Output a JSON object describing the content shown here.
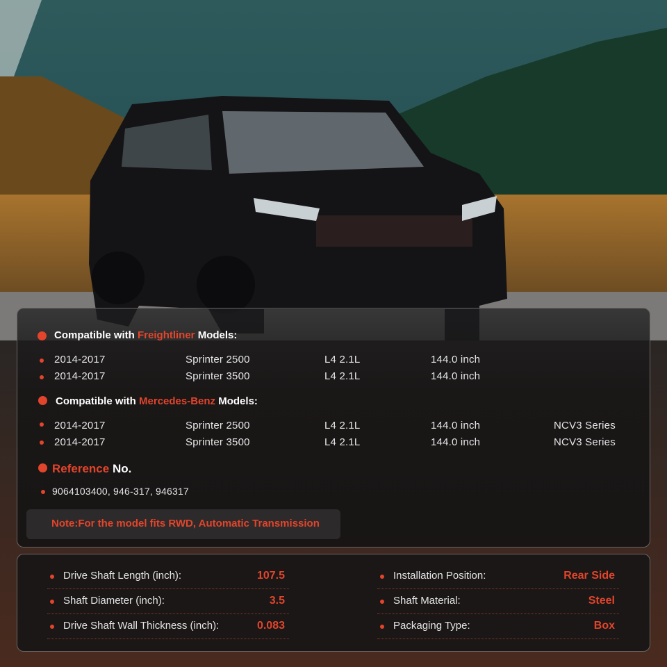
{
  "colors": {
    "accent": "#e2452c",
    "panel": "#1c1a1a",
    "text": "#e6e6e6"
  },
  "freightliner": {
    "prefix": "Compatible with",
    "brand": "Freightliner",
    "suffix": "Models:",
    "rows": [
      {
        "years": "2014-2017",
        "model": "Sprinter 2500",
        "engine": "L4 2.1L",
        "length": "144.0 inch"
      },
      {
        "years": "2014-2017",
        "model": "Sprinter 3500",
        "engine": "L4 2.1L",
        "length": "144.0 inch"
      }
    ]
  },
  "mercedes": {
    "prefix": "Compatible with",
    "brand": "Mercedes-Benz",
    "suffix": "Models:",
    "rows": [
      {
        "years": "2014-2017",
        "model": "Sprinter 2500",
        "engine": "L4 2.1L",
        "length": "144.0 inch",
        "series": "NCV3 Series"
      },
      {
        "years": "2014-2017",
        "model": "Sprinter 3500",
        "engine": "L4 2.1L",
        "length": "144.0 inch",
        "series": "NCV3 Series"
      }
    ]
  },
  "reference": {
    "label": "Reference",
    "suffix": "No.",
    "numbers": "9064103400, 946-317, 946317"
  },
  "note": "Note:For the model fits RWD,  Automatic Transmission",
  "specs": {
    "left": [
      {
        "label": "Drive Shaft Length (inch):",
        "value": "107.5"
      },
      {
        "label": "Shaft Diameter (inch):",
        "value": "3.5"
      },
      {
        "label": "Drive Shaft Wall Thickness (inch):",
        "value": "0.083"
      }
    ],
    "right": [
      {
        "label": "Installation Position:",
        "value": "Rear Side"
      },
      {
        "label": "Shaft Material:",
        "value": "Steel"
      },
      {
        "label": "Packaging Type:",
        "value": "Box"
      }
    ]
  }
}
